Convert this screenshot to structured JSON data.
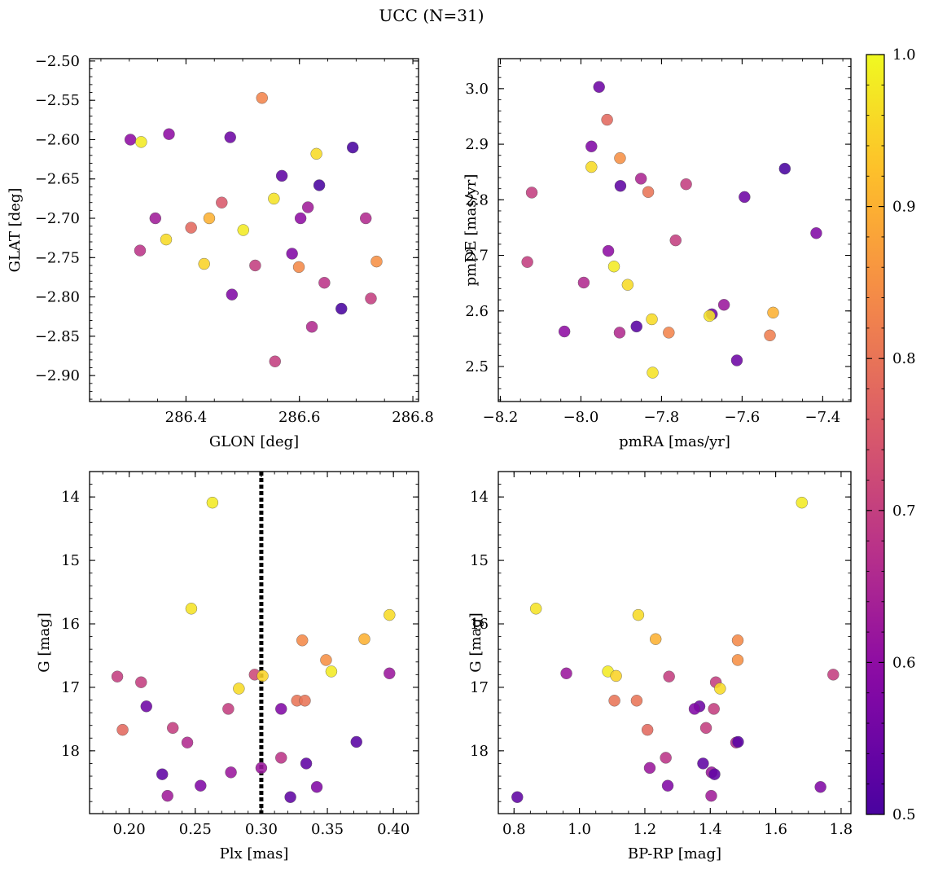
{
  "title": "UCC (N=31)",
  "colorbar": {
    "ticks": [
      "0.5",
      "0.6",
      "0.7",
      "0.8",
      "0.9",
      "1.0"
    ],
    "tick_values": [
      0.5,
      0.6,
      0.7,
      0.8,
      0.9,
      1.0
    ],
    "range": [
      0.5,
      1.0
    ],
    "colormap": "plasma"
  },
  "chart_data": [
    {
      "type": "scatter",
      "xlabel": "GLON [deg]",
      "ylabel": "GLAT [deg]",
      "xlim": [
        286.23,
        286.81
      ],
      "ylim": [
        -2.933,
        -2.497
      ],
      "y_inverted": false,
      "xticks": [
        286.4,
        286.6,
        286.8
      ],
      "xtick_labels": [
        "286.4",
        "286.6",
        "286.8"
      ],
      "yticks": [
        -2.5,
        -2.55,
        -2.6,
        -2.65,
        -2.7,
        -2.75,
        -2.8,
        -2.85,
        -2.9
      ],
      "ytick_labels": [
        "−2.50",
        "−2.55",
        "−2.60",
        "−2.65",
        "−2.70",
        "−2.75",
        "−2.80",
        "−2.85",
        "−2.90"
      ],
      "points": [
        {
          "x": 286.302,
          "y": -2.6,
          "c": 0.6
        },
        {
          "x": 286.321,
          "y": -2.603,
          "c": 0.98
        },
        {
          "x": 286.37,
          "y": -2.593,
          "c": 0.6
        },
        {
          "x": 286.478,
          "y": -2.597,
          "c": 0.55
        },
        {
          "x": 286.534,
          "y": -2.547,
          "c": 0.83
        },
        {
          "x": 286.694,
          "y": -2.61,
          "c": 0.5
        },
        {
          "x": 286.63,
          "y": -2.618,
          "c": 0.96
        },
        {
          "x": 286.569,
          "y": -2.646,
          "c": 0.53
        },
        {
          "x": 286.635,
          "y": -2.658,
          "c": 0.5
        },
        {
          "x": 286.555,
          "y": -2.675,
          "c": 0.97
        },
        {
          "x": 286.463,
          "y": -2.68,
          "c": 0.75
        },
        {
          "x": 286.615,
          "y": -2.686,
          "c": 0.63
        },
        {
          "x": 286.346,
          "y": -2.7,
          "c": 0.63
        },
        {
          "x": 286.409,
          "y": -2.712,
          "c": 0.78
        },
        {
          "x": 286.441,
          "y": -2.7,
          "c": 0.9
        },
        {
          "x": 286.602,
          "y": -2.7,
          "c": 0.6
        },
        {
          "x": 286.717,
          "y": -2.7,
          "c": 0.66
        },
        {
          "x": 286.501,
          "y": -2.715,
          "c": 0.98
        },
        {
          "x": 286.365,
          "y": -2.727,
          "c": 0.96
        },
        {
          "x": 286.319,
          "y": -2.741,
          "c": 0.68
        },
        {
          "x": 286.587,
          "y": -2.745,
          "c": 0.58
        },
        {
          "x": 286.432,
          "y": -2.758,
          "c": 0.95
        },
        {
          "x": 286.522,
          "y": -2.76,
          "c": 0.7
        },
        {
          "x": 286.599,
          "y": -2.762,
          "c": 0.84
        },
        {
          "x": 286.736,
          "y": -2.755,
          "c": 0.85
        },
        {
          "x": 286.481,
          "y": -2.797,
          "c": 0.58
        },
        {
          "x": 286.644,
          "y": -2.782,
          "c": 0.68
        },
        {
          "x": 286.726,
          "y": -2.802,
          "c": 0.7
        },
        {
          "x": 286.674,
          "y": -2.815,
          "c": 0.5
        },
        {
          "x": 286.622,
          "y": -2.838,
          "c": 0.66
        },
        {
          "x": 286.557,
          "y": -2.882,
          "c": 0.7
        }
      ]
    },
    {
      "type": "scatter",
      "xlabel": "pmRA [mas/yr]",
      "ylabel": "pmDE [mas/yr]",
      "xlim": [
        -8.205,
        -7.33
      ],
      "ylim": [
        2.437,
        3.054
      ],
      "y_inverted": false,
      "xticks": [
        -8.2,
        -8.0,
        -7.8,
        -7.6,
        -7.4
      ],
      "xtick_labels": [
        "−8.2",
        "−8.0",
        "−7.8",
        "−7.6",
        "−7.4"
      ],
      "yticks": [
        2.5,
        2.6,
        2.7,
        2.8,
        2.9,
        3.0
      ],
      "ytick_labels": [
        "2.5",
        "2.6",
        "2.7",
        "2.8",
        "2.9",
        "3.0"
      ],
      "points": [
        {
          "x": -7.955,
          "y": 3.003,
          "c": 0.55
        },
        {
          "x": -7.935,
          "y": 2.944,
          "c": 0.78
        },
        {
          "x": -7.974,
          "y": 2.896,
          "c": 0.58
        },
        {
          "x": -7.903,
          "y": 2.875,
          "c": 0.85
        },
        {
          "x": -7.974,
          "y": 2.859,
          "c": 0.96
        },
        {
          "x": -7.494,
          "y": 2.856,
          "c": 0.5
        },
        {
          "x": -7.851,
          "y": 2.838,
          "c": 0.65
        },
        {
          "x": -7.739,
          "y": 2.828,
          "c": 0.7
        },
        {
          "x": -7.902,
          "y": 2.825,
          "c": 0.53
        },
        {
          "x": -7.833,
          "y": 2.814,
          "c": 0.8
        },
        {
          "x": -8.122,
          "y": 2.813,
          "c": 0.7
        },
        {
          "x": -7.594,
          "y": 2.805,
          "c": 0.55
        },
        {
          "x": -7.416,
          "y": 2.74,
          "c": 0.58
        },
        {
          "x": -7.765,
          "y": 2.727,
          "c": 0.7
        },
        {
          "x": -7.932,
          "y": 2.708,
          "c": 0.6
        },
        {
          "x": -8.133,
          "y": 2.688,
          "c": 0.7
        },
        {
          "x": -7.918,
          "y": 2.68,
          "c": 0.98
        },
        {
          "x": -7.993,
          "y": 2.651,
          "c": 0.66
        },
        {
          "x": -7.884,
          "y": 2.647,
          "c": 0.96
        },
        {
          "x": -7.645,
          "y": 2.611,
          "c": 0.62
        },
        {
          "x": -7.523,
          "y": 2.597,
          "c": 0.9
        },
        {
          "x": -7.675,
          "y": 2.594,
          "c": 0.55
        },
        {
          "x": -7.681,
          "y": 2.591,
          "c": 0.97
        },
        {
          "x": -7.824,
          "y": 2.585,
          "c": 0.96
        },
        {
          "x": -7.862,
          "y": 2.572,
          "c": 0.52
        },
        {
          "x": -8.041,
          "y": 2.563,
          "c": 0.6
        },
        {
          "x": -7.904,
          "y": 2.561,
          "c": 0.66
        },
        {
          "x": -7.782,
          "y": 2.561,
          "c": 0.83
        },
        {
          "x": -7.531,
          "y": 2.556,
          "c": 0.82
        },
        {
          "x": -7.613,
          "y": 2.511,
          "c": 0.55
        },
        {
          "x": -7.822,
          "y": 2.489,
          "c": 0.97
        }
      ]
    },
    {
      "type": "scatter",
      "xlabel": "Plx [mas]",
      "ylabel": "G [mag]",
      "xlim": [
        0.17,
        0.419
      ],
      "ylim": [
        18.99,
        13.6
      ],
      "y_inverted": true,
      "xticks": [
        0.2,
        0.25,
        0.3,
        0.35,
        0.4
      ],
      "xtick_labels": [
        "0.20",
        "0.25",
        "0.30",
        "0.35",
        "0.40"
      ],
      "yticks": [
        14,
        15,
        16,
        17,
        18
      ],
      "ytick_labels": [
        "14",
        "15",
        "16",
        "17",
        "18"
      ],
      "vline": {
        "x": 0.3,
        "style": "dotted"
      },
      "points": [
        {
          "x": 0.263,
          "y": 14.09,
          "c": 0.98
        },
        {
          "x": 0.247,
          "y": 15.76,
          "c": 0.97
        },
        {
          "x": 0.397,
          "y": 15.86,
          "c": 0.96
        },
        {
          "x": 0.378,
          "y": 16.24,
          "c": 0.9
        },
        {
          "x": 0.331,
          "y": 16.26,
          "c": 0.84
        },
        {
          "x": 0.349,
          "y": 16.57,
          "c": 0.85
        },
        {
          "x": 0.353,
          "y": 16.75,
          "c": 0.98
        },
        {
          "x": 0.397,
          "y": 16.78,
          "c": 0.62
        },
        {
          "x": 0.191,
          "y": 16.83,
          "c": 0.7
        },
        {
          "x": 0.295,
          "y": 16.8,
          "c": 0.72
        },
        {
          "x": 0.301,
          "y": 16.82,
          "c": 0.95
        },
        {
          "x": 0.209,
          "y": 16.92,
          "c": 0.7
        },
        {
          "x": 0.283,
          "y": 17.02,
          "c": 0.96
        },
        {
          "x": 0.327,
          "y": 17.21,
          "c": 0.8
        },
        {
          "x": 0.333,
          "y": 17.21,
          "c": 0.8
        },
        {
          "x": 0.213,
          "y": 17.3,
          "c": 0.55
        },
        {
          "x": 0.275,
          "y": 17.34,
          "c": 0.7
        },
        {
          "x": 0.315,
          "y": 17.34,
          "c": 0.58
        },
        {
          "x": 0.233,
          "y": 17.64,
          "c": 0.7
        },
        {
          "x": 0.195,
          "y": 17.67,
          "c": 0.78
        },
        {
          "x": 0.244,
          "y": 17.87,
          "c": 0.66
        },
        {
          "x": 0.372,
          "y": 17.86,
          "c": 0.52
        },
        {
          "x": 0.315,
          "y": 18.11,
          "c": 0.68
        },
        {
          "x": 0.334,
          "y": 18.2,
          "c": 0.53
        },
        {
          "x": 0.3,
          "y": 18.27,
          "c": 0.62
        },
        {
          "x": 0.225,
          "y": 18.37,
          "c": 0.53
        },
        {
          "x": 0.277,
          "y": 18.34,
          "c": 0.62
        },
        {
          "x": 0.254,
          "y": 18.55,
          "c": 0.58
        },
        {
          "x": 0.342,
          "y": 18.57,
          "c": 0.58
        },
        {
          "x": 0.229,
          "y": 18.71,
          "c": 0.63
        },
        {
          "x": 0.322,
          "y": 18.73,
          "c": 0.53
        }
      ]
    },
    {
      "type": "scatter",
      "xlabel": "BP-RP [mag]",
      "ylabel": "G [mag]",
      "xlim": [
        0.752,
        1.83
      ],
      "ylim": [
        18.99,
        13.6
      ],
      "y_inverted": true,
      "xticks": [
        0.8,
        1.0,
        1.2,
        1.4,
        1.6,
        1.8
      ],
      "xtick_labels": [
        "0.8",
        "1.0",
        "1.2",
        "1.4",
        "1.6",
        "1.8"
      ],
      "yticks": [
        14,
        15,
        16,
        17,
        18
      ],
      "ytick_labels": [
        "14",
        "15",
        "16",
        "17",
        "18"
      ],
      "points": [
        {
          "x": 1.68,
          "y": 14.09,
          "c": 0.98
        },
        {
          "x": 0.867,
          "y": 15.76,
          "c": 0.97
        },
        {
          "x": 1.18,
          "y": 15.86,
          "c": 0.96
        },
        {
          "x": 1.233,
          "y": 16.24,
          "c": 0.9
        },
        {
          "x": 1.484,
          "y": 16.26,
          "c": 0.84
        },
        {
          "x": 1.484,
          "y": 16.57,
          "c": 0.85
        },
        {
          "x": 1.087,
          "y": 16.75,
          "c": 0.98
        },
        {
          "x": 0.96,
          "y": 16.78,
          "c": 0.62
        },
        {
          "x": 1.776,
          "y": 16.8,
          "c": 0.7
        },
        {
          "x": 1.112,
          "y": 16.82,
          "c": 0.95
        },
        {
          "x": 1.274,
          "y": 16.83,
          "c": 0.7
        },
        {
          "x": 1.417,
          "y": 16.92,
          "c": 0.7
        },
        {
          "x": 1.43,
          "y": 17.02,
          "c": 0.96
        },
        {
          "x": 1.107,
          "y": 17.21,
          "c": 0.8
        },
        {
          "x": 1.175,
          "y": 17.21,
          "c": 0.8
        },
        {
          "x": 1.367,
          "y": 17.3,
          "c": 0.55
        },
        {
          "x": 1.352,
          "y": 17.34,
          "c": 0.58
        },
        {
          "x": 1.411,
          "y": 17.34,
          "c": 0.7
        },
        {
          "x": 1.387,
          "y": 17.64,
          "c": 0.7
        },
        {
          "x": 1.208,
          "y": 17.67,
          "c": 0.78
        },
        {
          "x": 1.479,
          "y": 17.87,
          "c": 0.66
        },
        {
          "x": 1.485,
          "y": 17.86,
          "c": 0.52
        },
        {
          "x": 1.264,
          "y": 18.11,
          "c": 0.68
        },
        {
          "x": 1.378,
          "y": 18.2,
          "c": 0.53
        },
        {
          "x": 1.215,
          "y": 18.27,
          "c": 0.62
        },
        {
          "x": 1.404,
          "y": 18.34,
          "c": 0.62
        },
        {
          "x": 1.413,
          "y": 18.37,
          "c": 0.53
        },
        {
          "x": 1.27,
          "y": 18.55,
          "c": 0.58
        },
        {
          "x": 1.737,
          "y": 18.57,
          "c": 0.58
        },
        {
          "x": 0.81,
          "y": 18.73,
          "c": 0.53
        },
        {
          "x": 1.403,
          "y": 18.71,
          "c": 0.63
        }
      ]
    }
  ]
}
